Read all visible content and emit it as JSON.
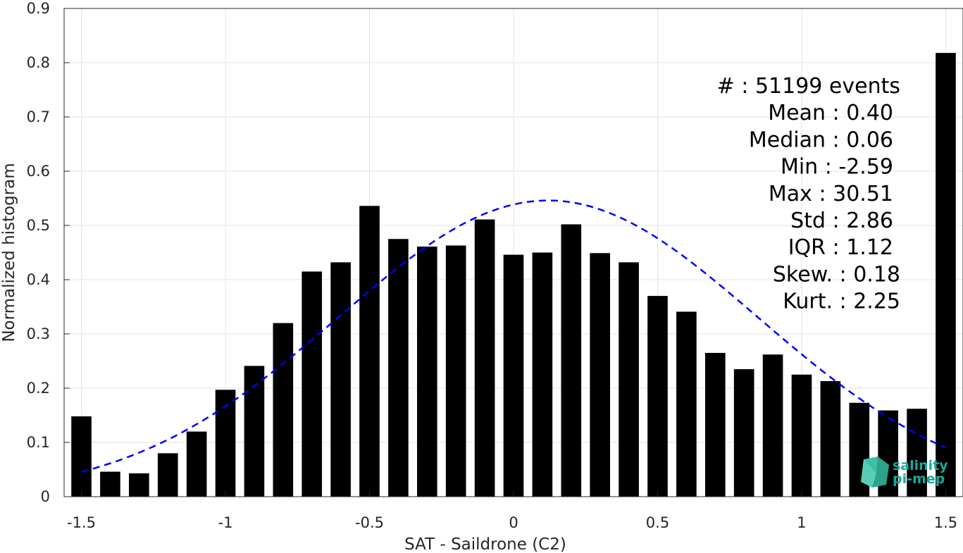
{
  "chart_data": {
    "type": "bar",
    "xlabel": "SAT - Saildrone (C2)",
    "ylabel": "Normalized histogram",
    "xlim": [
      -1.56,
      1.56
    ],
    "ylim": [
      0,
      0.9
    ],
    "grid": true,
    "x_ticks": [
      -1.5,
      -1,
      -0.5,
      0,
      0.5,
      1,
      1.5
    ],
    "x_tick_labels": [
      "-1.5",
      "-1",
      "-0.5",
      "0",
      "0.5",
      "1",
      "1.5"
    ],
    "y_ticks": [
      0,
      0.1,
      0.2,
      0.3,
      0.4,
      0.5,
      0.6,
      0.7,
      0.8,
      0.9
    ],
    "y_tick_labels": [
      "0",
      "0.1",
      "0.2",
      "0.3",
      "0.4",
      "0.5",
      "0.6",
      "0.7",
      "0.8",
      "0.9"
    ],
    "bar_width": 0.07,
    "bin_centers": [
      -1.5,
      -1.4,
      -1.3,
      -1.2,
      -1.1,
      -1.0,
      -0.9,
      -0.8,
      -0.7,
      -0.6,
      -0.5,
      -0.4,
      -0.3,
      -0.2,
      -0.1,
      0.0,
      0.1,
      0.2,
      0.3,
      0.4,
      0.5,
      0.6,
      0.7,
      0.8,
      0.9,
      1.0,
      1.1,
      1.2,
      1.3,
      1.4,
      1.5
    ],
    "values": [
      0.148,
      0.046,
      0.043,
      0.08,
      0.12,
      0.197,
      0.241,
      0.32,
      0.415,
      0.432,
      0.536,
      0.475,
      0.461,
      0.463,
      0.511,
      0.446,
      0.45,
      0.502,
      0.449,
      0.432,
      0.37,
      0.341,
      0.265,
      0.235,
      0.262,
      0.225,
      0.213,
      0.173,
      0.159,
      0.162,
      0.818
    ],
    "bar_color": "#000000",
    "fit_curve": {
      "style": "dashed",
      "color": "#0000ff",
      "mean": 0.12,
      "sigma": 0.727,
      "peak": 0.546,
      "x_range": [
        -1.5,
        1.5
      ]
    },
    "stats_lines": [
      "#  : 51199 events",
      "Mean : 0.40",
      "Median : 0.06",
      "Min : -2.59",
      "Max : 30.51",
      "Std : 2.86",
      "IQR : 1.12",
      "Skew. : 0.18",
      "Kurt. : 2.25"
    ]
  },
  "logo": {
    "line1": "salinity",
    "line2": "pi-mep",
    "color": "#1aa89a"
  }
}
